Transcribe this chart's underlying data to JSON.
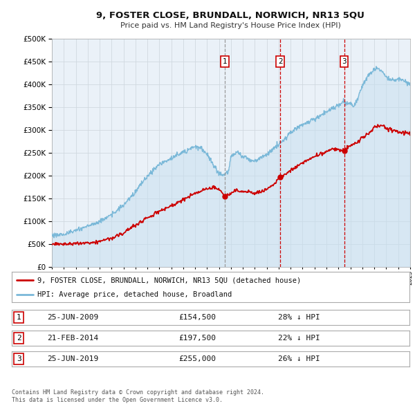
{
  "title": "9, FOSTER CLOSE, BRUNDALL, NORWICH, NR13 5QU",
  "subtitle": "Price paid vs. HM Land Registry's House Price Index (HPI)",
  "ylim": [
    0,
    500000
  ],
  "yticks": [
    0,
    50000,
    100000,
    150000,
    200000,
    250000,
    300000,
    350000,
    400000,
    450000,
    500000
  ],
  "ytick_labels": [
    "£0",
    "£50K",
    "£100K",
    "£150K",
    "£200K",
    "£250K",
    "£300K",
    "£350K",
    "£400K",
    "£450K",
    "£500K"
  ],
  "hpi_color": "#7ab8d8",
  "hpi_fill_color": "#c5dff0",
  "price_color": "#cc0000",
  "sale_marker_color": "#cc0000",
  "background_color": "#ffffff",
  "plot_bg_color": "#eaf1f8",
  "grid_color": "#d0d8e0",
  "sale1_x": 2009.48,
  "sale1_y": 154500,
  "sale1_label": "1",
  "sale1_date": "25-JUN-2009",
  "sale1_price": "£154,500",
  "sale1_hpi_txt": "28% ↓ HPI",
  "sale1_vline_color": "#999999",
  "sale2_x": 2014.13,
  "sale2_y": 197500,
  "sale2_label": "2",
  "sale2_date": "21-FEB-2014",
  "sale2_price": "£197,500",
  "sale2_hpi_txt": "22% ↓ HPI",
  "sale2_vline_color": "#cc0000",
  "sale3_x": 2019.48,
  "sale3_y": 255000,
  "sale3_label": "3",
  "sale3_date": "25-JUN-2019",
  "sale3_price": "£255,000",
  "sale3_hpi_txt": "26% ↓ HPI",
  "sale3_vline_color": "#cc0000",
  "legend_price_label": "9, FOSTER CLOSE, BRUNDALL, NORWICH, NR13 5QU (detached house)",
  "legend_hpi_label": "HPI: Average price, detached house, Broadland",
  "footer1": "Contains HM Land Registry data © Crown copyright and database right 2024.",
  "footer2": "This data is licensed under the Open Government Licence v3.0.",
  "xmin": 1995,
  "xmax": 2025
}
